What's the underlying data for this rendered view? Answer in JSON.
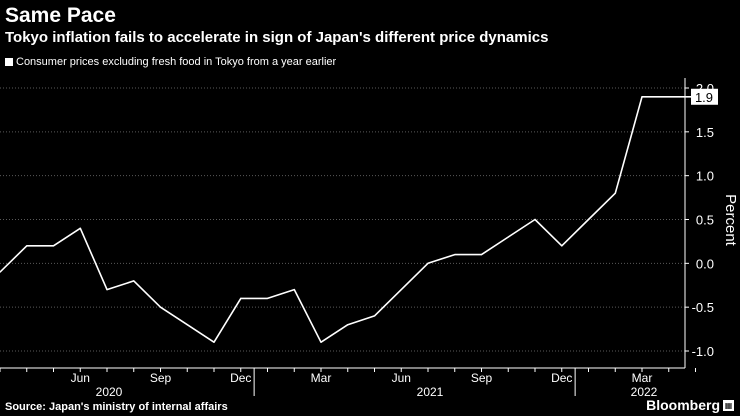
{
  "header": {
    "title": "Same Pace",
    "subtitle": "Tokyo inflation fails to accelerate in sign of Japan's different price dynamics"
  },
  "footer": {
    "source": "Source: Japan's ministry of internal affairs",
    "brand": "Bloomberg",
    "brand_icon": "bloomberg-terminal-icon"
  },
  "colors": {
    "background": "#000000",
    "line": "#ffffff",
    "grid": "#5a5a5a",
    "text": "#ffffff"
  },
  "chart_data": {
    "type": "line",
    "title": "Same Pace",
    "subtitle": "Tokyo inflation fails to accelerate in sign of Japan's different price dynamics",
    "xlabel": "",
    "ylabel": "Percent",
    "ylim": [
      -1.15,
      2.15
    ],
    "yticks": [
      -1.0,
      -0.5,
      0.0,
      0.5,
      1.0,
      1.5,
      2.0
    ],
    "ytick_labels": [
      "-1.0",
      "-0.5",
      "0.0",
      "0.5",
      "1.0",
      "1.5",
      "2.0"
    ],
    "grid": "horizontal dotted",
    "legend": "top-left",
    "x": [
      "2020-03",
      "2020-04",
      "2020-05",
      "2020-06",
      "2020-07",
      "2020-08",
      "2020-09",
      "2020-10",
      "2020-11",
      "2020-12",
      "2021-01",
      "2021-02",
      "2021-03",
      "2021-04",
      "2021-05",
      "2021-06",
      "2021-07",
      "2021-08",
      "2021-09",
      "2021-10",
      "2021-11",
      "2021-12",
      "2022-01",
      "2022-02",
      "2022-03",
      "2022-04",
      "2022-05"
    ],
    "series": [
      {
        "name": "Consumer prices excluding fresh food in Tokyo from a year earlier",
        "values": [
          -0.1,
          0.2,
          0.2,
          0.4,
          -0.3,
          -0.2,
          -0.5,
          -0.7,
          -0.9,
          -0.4,
          -0.4,
          -0.3,
          -0.9,
          -0.7,
          -0.6,
          -0.3,
          0.0,
          0.1,
          0.1,
          0.3,
          0.5,
          0.2,
          0.5,
          0.8,
          1.9,
          1.9,
          1.9
        ]
      }
    ],
    "x_month_ticks": [
      {
        "month": "2020-06",
        "label": "Jun"
      },
      {
        "month": "2020-09",
        "label": "Sep"
      },
      {
        "month": "2020-12",
        "label": "Dec"
      },
      {
        "month": "2021-03",
        "label": "Mar"
      },
      {
        "month": "2021-06",
        "label": "Jun"
      },
      {
        "month": "2021-09",
        "label": "Sep"
      },
      {
        "month": "2021-12",
        "label": "Dec"
      },
      {
        "month": "2022-03",
        "label": "Mar"
      }
    ],
    "x_year_labels": [
      {
        "month": "2020-07",
        "label": "2020"
      },
      {
        "month": "2021-07",
        "label": "2021"
      },
      {
        "month": "2022-03",
        "label": "2022"
      }
    ],
    "last_value_label": "1.9"
  }
}
